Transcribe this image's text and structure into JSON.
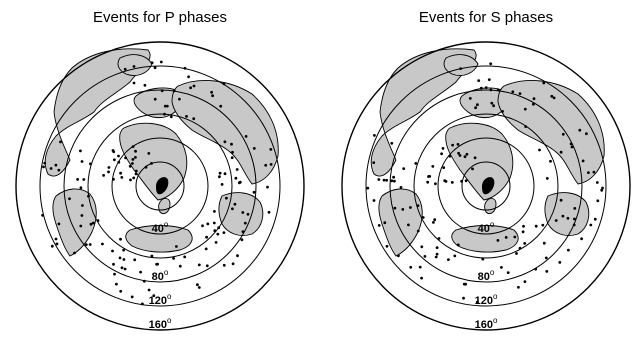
{
  "panels": [
    {
      "title": "Events for P phases",
      "ring_labels": [
        {
          "deg": "40",
          "sup": "o"
        },
        {
          "deg": "80",
          "sup": "o"
        },
        {
          "deg": "120",
          "sup": "o"
        },
        {
          "deg": "160",
          "sup": "o"
        }
      ]
    },
    {
      "title": "Events for S phases",
      "ring_labels": [
        {
          "deg": "40",
          "sup": "o"
        },
        {
          "deg": "80",
          "sup": "o"
        },
        {
          "deg": "120",
          "sup": "o"
        },
        {
          "deg": "160",
          "sup": "o"
        }
      ]
    }
  ],
  "colors": {
    "land": "#c8c8c8",
    "outline": "#000000",
    "ring": "#000000",
    "event": "#000000",
    "station": "#000000"
  }
}
